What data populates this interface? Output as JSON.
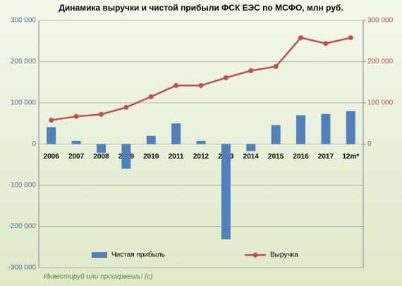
{
  "chart_data": {
    "type": "bar_line",
    "title": "Динамика выручки  и чистой прибыли ФСК ЕЭС по МСФО, млн руб.",
    "categories": [
      "2006",
      "2007",
      "2008",
      "2009",
      "2010",
      "2011",
      "2012",
      "2013",
      "2014",
      "2015",
      "2016",
      "2017",
      "12m*"
    ],
    "series": [
      {
        "name": "Чистая прибыль",
        "type": "bar",
        "color": "#4f81bd",
        "values": [
          41000,
          8000,
          -21000,
          -60000,
          20000,
          50000,
          8000,
          -231000,
          -17000,
          46000,
          70000,
          73000,
          80000
        ]
      },
      {
        "name": "Выручка",
        "type": "line",
        "axis": "y2",
        "color": "#c0504d",
        "values": [
          58000,
          67000,
          72000,
          89000,
          115000,
          142000,
          142000,
          161000,
          178000,
          188000,
          258000,
          244000,
          258000
        ]
      }
    ],
    "ylim": [
      -300000,
      300000
    ],
    "yticks": [
      {
        "value": -300000,
        "label": "-300 000"
      },
      {
        "value": -200000,
        "label": "-200 000"
      },
      {
        "value": -100000,
        "label": "-100 000"
      },
      0,
      {
        "value": 100000,
        "label": "100 000"
      },
      {
        "value": 200000,
        "label": "200 000"
      },
      {
        "value": 300000,
        "label": "300 000"
      }
    ],
    "y2lim": [
      -300000,
      300000
    ],
    "y2ticks": [
      0,
      {
        "value": 100000,
        "label": "100 000"
      },
      {
        "value": 200000,
        "label": "200 000"
      },
      {
        "value": 300000,
        "label": "300 000"
      }
    ],
    "grid": true,
    "legend": "bottom",
    "watermark": "Инвестируй или проиграешь! (с)"
  }
}
